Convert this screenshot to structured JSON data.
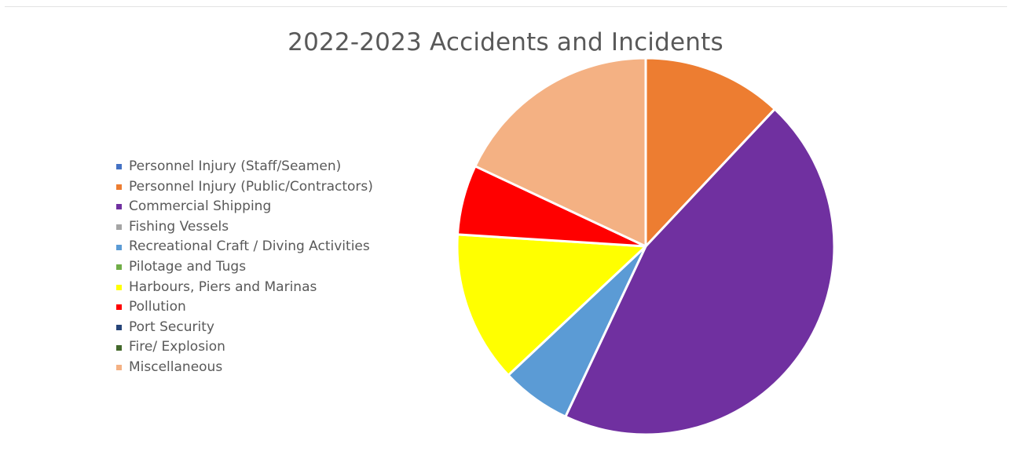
{
  "chart_data": {
    "type": "pie",
    "title": "2022-2023 Accidents and Incidents",
    "legend_position": "left",
    "start_angle_deg": 0,
    "direction": "clockwise",
    "slices": [
      {
        "label": "Personnel Injury (Staff/Seamen)",
        "value": 0,
        "color": "#4472C4"
      },
      {
        "label": "Personnel Injury (Public/Contractors)",
        "value": 12,
        "color": "#ED7D31"
      },
      {
        "label": "Commercial Shipping",
        "value": 45,
        "color": "#7030A0"
      },
      {
        "label": "Fishing Vessels",
        "value": 0,
        "color": "#A5A5A5"
      },
      {
        "label": "Recreational Craft / Diving Activities",
        "value": 6,
        "color": "#5B9BD5"
      },
      {
        "label": "Pilotage and Tugs",
        "value": 0,
        "color": "#70AD47"
      },
      {
        "label": "Harbours, Piers and Marinas",
        "value": 13,
        "color": "#FFFF00"
      },
      {
        "label": "Pollution",
        "value": 6,
        "color": "#FF0000"
      },
      {
        "label": "Port Security",
        "value": 0,
        "color": "#264478"
      },
      {
        "label": "Fire/ Explosion",
        "value": 0,
        "color": "#43682B"
      },
      {
        "label": "Miscellaneous",
        "value": 18,
        "color": "#F4B183"
      }
    ]
  }
}
